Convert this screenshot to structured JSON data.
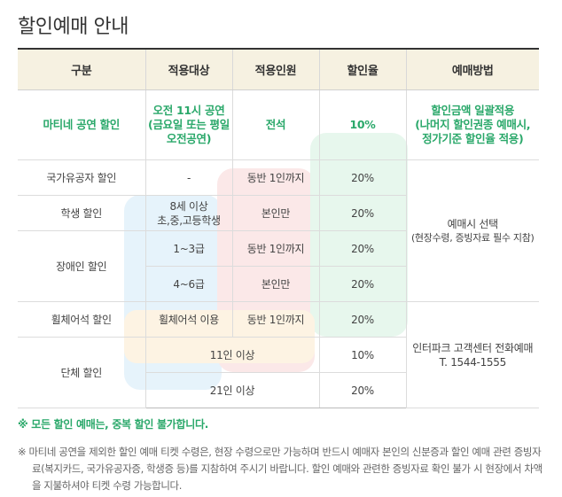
{
  "title": "할인예매 안내",
  "headers": [
    "구분",
    "적용대상",
    "적용인원",
    "할인율",
    "예매방법"
  ],
  "matinee": {
    "category": "마티네 공연 할인",
    "target_line1": "오전 11시 공연",
    "target_line2": "(금요일 또는 평일",
    "target_line3": "오전공연)",
    "count": "전석",
    "rate": "10%",
    "method_line1": "할인금액 일괄적용",
    "method_line2": "(나머지 할인권종 예매시,",
    "method_line3": "정가기준 할인율 적용)"
  },
  "rows": {
    "veteran": {
      "category": "국가유공자 할인",
      "target": "-",
      "count": "동반 1인까지",
      "rate": "20%"
    },
    "student": {
      "category": "학생 할인",
      "target_line1": "8세 이상",
      "target_line2": "초,중,고등학생",
      "count": "본인만",
      "rate": "20%"
    },
    "disabled": {
      "category": "장애인 할인",
      "target_a": "1~3급",
      "count_a": "동반 1인까지",
      "rate_a": "20%",
      "target_b": "4~6급",
      "count_b": "본인만",
      "rate_b": "20%"
    },
    "wheelchair": {
      "category": "휠체어석 할인",
      "target": "휠체어석 이용",
      "count": "동반 1인까지",
      "rate": "20%"
    },
    "group": {
      "category": "단체 할인",
      "target_a": "11인 이상",
      "rate_a": "10%",
      "target_b": "21인 이상",
      "rate_b": "20%"
    }
  },
  "method_onsite": {
    "line1": "예매시 선택",
    "line2": "(현장수령, 증빙자료 필수 지참)"
  },
  "method_phone": {
    "line1": "인터파크 고객센터 전화예매",
    "line2": "T. 1544-1555"
  },
  "notes": {
    "green": "※ 모든 할인 예매는, 중복 할인 불가합니다.",
    "body": "※ 마티네 공연을 제외한 할인 예매 티켓 수령은, 현장 수령으로만 가능하며 반드시 예매자 본인의 신분증과 할인 예매 관련 증빙자료(복지카드, 국가유공자증, 학생증 등)를 지참하여 주시기 바랍니다. 할인 예매와 관련한 증빙자료 확인 불가 시 현장에서 차액을 지불하셔야 티켓 수령 가능합니다."
  },
  "colors": {
    "accent_green": "#2aa86a",
    "header_bg": "#f6f1e1"
  }
}
